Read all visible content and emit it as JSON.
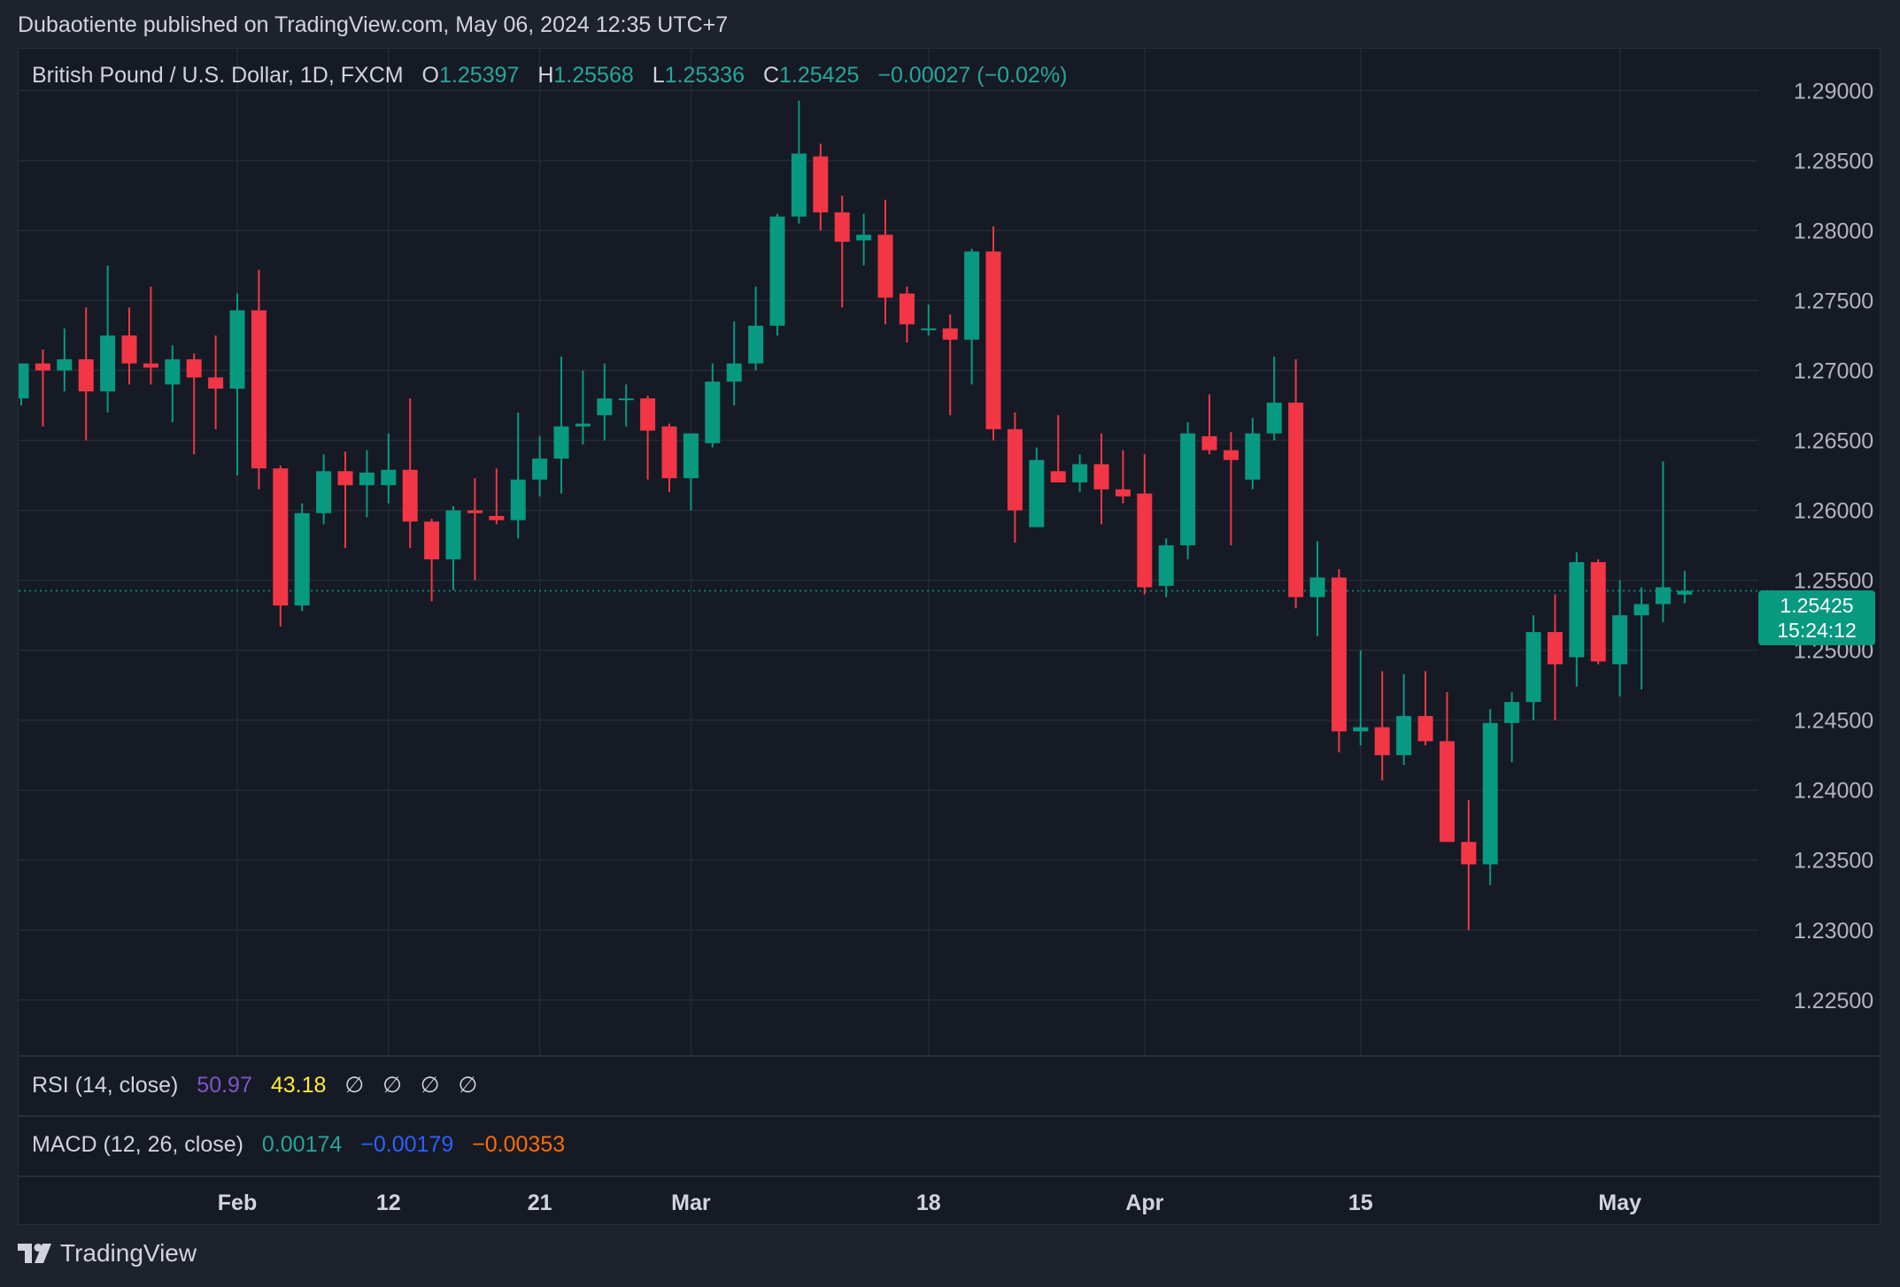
{
  "header": {
    "published": "Dubaotiente published on TradingView.com, May 06, 2024 12:35 UTC+7"
  },
  "legend": {
    "symbol": "British Pound / U.S. Dollar, 1D, FXCM",
    "open_label": "O",
    "open": "1.25397",
    "high_label": "H",
    "high": "1.25568",
    "low_label": "L",
    "low": "1.25336",
    "close_label": "C",
    "close": "1.25425",
    "change": "−0.00027 (−0.02%)"
  },
  "price_tag": {
    "price": "1.25425",
    "countdown": "15:24:12"
  },
  "rsi": {
    "label": "RSI (14, close)",
    "value1": "50.97",
    "value2": "43.18",
    "value3": "∅",
    "value4": "∅",
    "value5": "∅",
    "value6": "∅"
  },
  "macd": {
    "label": "MACD (12, 26, close)",
    "value1": "0.00174",
    "value2": "−0.00179",
    "value3": "−0.00353"
  },
  "footer": {
    "brand": "TradingView",
    "logo_icon": "tradingview-logo-icon"
  },
  "colors": {
    "up": "#089981",
    "down": "#f23645",
    "grid": "#262a35",
    "axis_text": "#b2b5be",
    "rsi_value1": "#7e57c2",
    "rsi_value2": "#ffeb3b",
    "macd_value1": "#26a69a",
    "macd_value2": "#2962ff",
    "macd_value3": "#ff6d00",
    "last_price_line": "#089981"
  },
  "chart_data": {
    "type": "candlestick",
    "title": "British Pound / U.S. Dollar, 1D, FXCM",
    "ylim": [
      1.221,
      1.293
    ],
    "y_ticks": [
      "1.29000",
      "1.28500",
      "1.28000",
      "1.27500",
      "1.27000",
      "1.26500",
      "1.26000",
      "1.25500",
      "1.25000",
      "1.24500",
      "1.24000",
      "1.23500",
      "1.23000",
      "1.22500"
    ],
    "x_ticks": [
      {
        "label": "Feb",
        "index": 10
      },
      {
        "label": "12",
        "index": 17
      },
      {
        "label": "21",
        "index": 24
      },
      {
        "label": "Mar",
        "index": 31
      },
      {
        "label": "18",
        "index": 42
      },
      {
        "label": "Apr",
        "index": 52
      },
      {
        "label": "15",
        "index": 62
      },
      {
        "label": "May",
        "index": 74
      }
    ],
    "last_price": 1.25425,
    "candles": [
      {
        "o": 1.268,
        "h": 1.2705,
        "l": 1.2675,
        "c": 1.2705
      },
      {
        "o": 1.2705,
        "h": 1.2715,
        "l": 1.266,
        "c": 1.27
      },
      {
        "o": 1.27,
        "h": 1.273,
        "l": 1.2685,
        "c": 1.2708
      },
      {
        "o": 1.2708,
        "h": 1.2745,
        "l": 1.265,
        "c": 1.2685
      },
      {
        "o": 1.2685,
        "h": 1.2775,
        "l": 1.267,
        "c": 1.2725
      },
      {
        "o": 1.2725,
        "h": 1.2745,
        "l": 1.269,
        "c": 1.2705
      },
      {
        "o": 1.2705,
        "h": 1.276,
        "l": 1.269,
        "c": 1.2702
      },
      {
        "o": 1.269,
        "h": 1.2718,
        "l": 1.2663,
        "c": 1.2708
      },
      {
        "o": 1.2708,
        "h": 1.2712,
        "l": 1.264,
        "c": 1.2695
      },
      {
        "o": 1.2695,
        "h": 1.2725,
        "l": 1.2658,
        "c": 1.2687
      },
      {
        "o": 1.2687,
        "h": 1.2755,
        "l": 1.2625,
        "c": 1.2743
      },
      {
        "o": 1.2743,
        "h": 1.2772,
        "l": 1.2615,
        "c": 1.263
      },
      {
        "o": 1.263,
        "h": 1.2632,
        "l": 1.2517,
        "c": 1.2532
      },
      {
        "o": 1.2532,
        "h": 1.2605,
        "l": 1.2528,
        "c": 1.2598
      },
      {
        "o": 1.2598,
        "h": 1.264,
        "l": 1.259,
        "c": 1.2628
      },
      {
        "o": 1.2628,
        "h": 1.2642,
        "l": 1.2573,
        "c": 1.2618
      },
      {
        "o": 1.2618,
        "h": 1.2643,
        "l": 1.2595,
        "c": 1.2627
      },
      {
        "o": 1.2618,
        "h": 1.2655,
        "l": 1.2605,
        "c": 1.2629
      },
      {
        "o": 1.2629,
        "h": 1.268,
        "l": 1.2573,
        "c": 1.2592
      },
      {
        "o": 1.2592,
        "h": 1.2594,
        "l": 1.2535,
        "c": 1.2565
      },
      {
        "o": 1.2565,
        "h": 1.2603,
        "l": 1.2543,
        "c": 1.26
      },
      {
        "o": 1.26,
        "h": 1.2623,
        "l": 1.255,
        "c": 1.2598
      },
      {
        "o": 1.2596,
        "h": 1.263,
        "l": 1.259,
        "c": 1.2593
      },
      {
        "o": 1.2593,
        "h": 1.267,
        "l": 1.258,
        "c": 1.2622
      },
      {
        "o": 1.2622,
        "h": 1.2653,
        "l": 1.261,
        "c": 1.2637
      },
      {
        "o": 1.2637,
        "h": 1.271,
        "l": 1.2612,
        "c": 1.266
      },
      {
        "o": 1.266,
        "h": 1.27,
        "l": 1.2647,
        "c": 1.2662
      },
      {
        "o": 1.2668,
        "h": 1.2705,
        "l": 1.265,
        "c": 1.268
      },
      {
        "o": 1.268,
        "h": 1.269,
        "l": 1.266,
        "c": 1.268
      },
      {
        "o": 1.268,
        "h": 1.2682,
        "l": 1.2622,
        "c": 1.2657
      },
      {
        "o": 1.266,
        "h": 1.2662,
        "l": 1.2613,
        "c": 1.2623
      },
      {
        "o": 1.2623,
        "h": 1.2655,
        "l": 1.26,
        "c": 1.2655
      },
      {
        "o": 1.2648,
        "h": 1.2705,
        "l": 1.2645,
        "c": 1.2692
      },
      {
        "o": 1.2692,
        "h": 1.2735,
        "l": 1.2675,
        "c": 1.2705
      },
      {
        "o": 1.2705,
        "h": 1.276,
        "l": 1.27,
        "c": 1.2732
      },
      {
        "o": 1.2732,
        "h": 1.2812,
        "l": 1.2725,
        "c": 1.281
      },
      {
        "o": 1.281,
        "h": 1.2893,
        "l": 1.2805,
        "c": 1.2855
      },
      {
        "o": 1.2853,
        "h": 1.2862,
        "l": 1.28,
        "c": 1.2813
      },
      {
        "o": 1.2813,
        "h": 1.2825,
        "l": 1.2745,
        "c": 1.2792
      },
      {
        "o": 1.2793,
        "h": 1.2812,
        "l": 1.2775,
        "c": 1.2797
      },
      {
        "o": 1.2797,
        "h": 1.2822,
        "l": 1.2733,
        "c": 1.2752
      },
      {
        "o": 1.2755,
        "h": 1.276,
        "l": 1.272,
        "c": 1.2733
      },
      {
        "o": 1.273,
        "h": 1.2747,
        "l": 1.2725,
        "c": 1.273
      },
      {
        "o": 1.273,
        "h": 1.274,
        "l": 1.2668,
        "c": 1.2722
      },
      {
        "o": 1.2722,
        "h": 1.2787,
        "l": 1.269,
        "c": 1.2785
      },
      {
        "o": 1.2785,
        "h": 1.2803,
        "l": 1.265,
        "c": 1.2658
      },
      {
        "o": 1.2658,
        "h": 1.267,
        "l": 1.2577,
        "c": 1.26
      },
      {
        "o": 1.2588,
        "h": 1.2645,
        "l": 1.2588,
        "c": 1.2636
      },
      {
        "o": 1.2628,
        "h": 1.2668,
        "l": 1.262,
        "c": 1.262
      },
      {
        "o": 1.262,
        "h": 1.264,
        "l": 1.2613,
        "c": 1.2633
      },
      {
        "o": 1.2633,
        "h": 1.2655,
        "l": 1.259,
        "c": 1.2615
      },
      {
        "o": 1.2615,
        "h": 1.2643,
        "l": 1.2605,
        "c": 1.261
      },
      {
        "o": 1.2612,
        "h": 1.264,
        "l": 1.254,
        "c": 1.2545
      },
      {
        "o": 1.2546,
        "h": 1.258,
        "l": 1.2538,
        "c": 1.2575
      },
      {
        "o": 1.2575,
        "h": 1.2663,
        "l": 1.2565,
        "c": 1.2655
      },
      {
        "o": 1.2653,
        "h": 1.2683,
        "l": 1.264,
        "c": 1.2643
      },
      {
        "o": 1.2643,
        "h": 1.2656,
        "l": 1.2575,
        "c": 1.2636
      },
      {
        "o": 1.2622,
        "h": 1.2666,
        "l": 1.2615,
        "c": 1.2655
      },
      {
        "o": 1.2655,
        "h": 1.271,
        "l": 1.265,
        "c": 1.2677
      },
      {
        "o": 1.2677,
        "h": 1.2708,
        "l": 1.253,
        "c": 1.2538
      },
      {
        "o": 1.2538,
        "h": 1.2578,
        "l": 1.251,
        "c": 1.2552
      },
      {
        "o": 1.2552,
        "h": 1.2558,
        "l": 1.2427,
        "c": 1.2442
      },
      {
        "o": 1.2442,
        "h": 1.25,
        "l": 1.2432,
        "c": 1.2445
      },
      {
        "o": 1.2445,
        "h": 1.2485,
        "l": 1.2407,
        "c": 1.2425
      },
      {
        "o": 1.2425,
        "h": 1.2483,
        "l": 1.2418,
        "c": 1.2453
      },
      {
        "o": 1.2453,
        "h": 1.2485,
        "l": 1.2432,
        "c": 1.2435
      },
      {
        "o": 1.2435,
        "h": 1.247,
        "l": 1.2365,
        "c": 1.2363
      },
      {
        "o": 1.2363,
        "h": 1.2393,
        "l": 1.23,
        "c": 1.2347
      },
      {
        "o": 1.2347,
        "h": 1.2458,
        "l": 1.2332,
        "c": 1.2448
      },
      {
        "o": 1.2448,
        "h": 1.247,
        "l": 1.242,
        "c": 1.2463
      },
      {
        "o": 1.2463,
        "h": 1.2525,
        "l": 1.245,
        "c": 1.2513
      },
      {
        "o": 1.2513,
        "h": 1.254,
        "l": 1.245,
        "c": 1.249
      },
      {
        "o": 1.2495,
        "h": 1.257,
        "l": 1.2474,
        "c": 1.2563
      },
      {
        "o": 1.2563,
        "h": 1.2565,
        "l": 1.249,
        "c": 1.2492
      },
      {
        "o": 1.249,
        "h": 1.255,
        "l": 1.2467,
        "c": 1.2525
      },
      {
        "o": 1.2525,
        "h": 1.2545,
        "l": 1.2472,
        "c": 1.2533
      },
      {
        "o": 1.2533,
        "h": 1.2635,
        "l": 1.252,
        "c": 1.2545
      },
      {
        "o": 1.25397,
        "h": 1.25568,
        "l": 1.25336,
        "c": 1.25425
      }
    ]
  }
}
